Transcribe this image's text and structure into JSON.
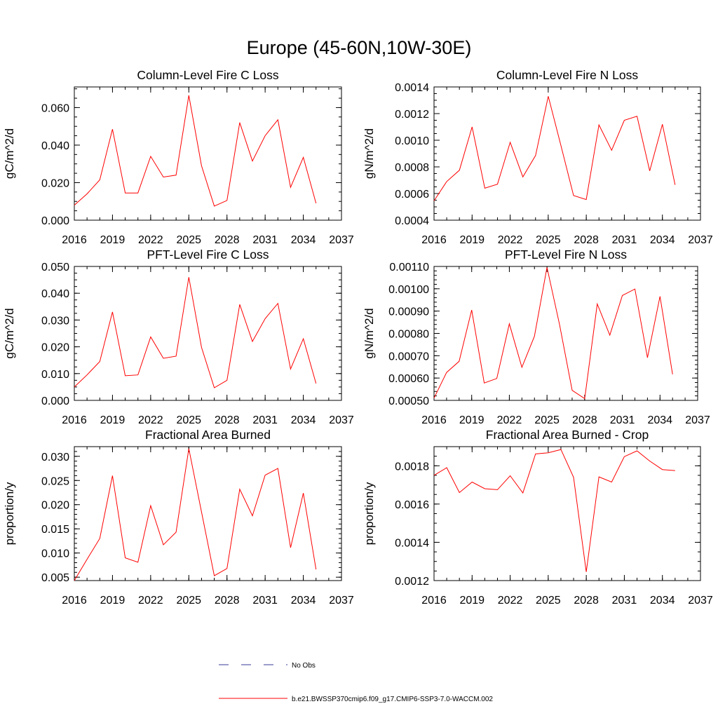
{
  "figure": {
    "title": "Europe (45-60N,10W-30E)",
    "legend": [
      {
        "label": "No Obs",
        "color": "#3a3a9a",
        "style": "dashed"
      },
      {
        "label": "b.e21.BWSSP370cmip6.f09_g17.CMIP6-SSP3-7.0-WACCM.002",
        "color": "#ff0000",
        "style": "solid"
      }
    ]
  },
  "chart_data": [
    {
      "type": "line",
      "title": "Column-Level Fire C Loss",
      "ylabel": "gC/m^2/d",
      "xlim": [
        2016,
        2037
      ],
      "xticks": [
        2016,
        2019,
        2022,
        2025,
        2028,
        2031,
        2034,
        2037
      ],
      "xtick_labels": [
        "2016",
        "2019",
        "2022",
        "2025",
        "2028",
        "2031",
        "2034",
        "2037"
      ],
      "ylim": [
        0.0,
        0.071
      ],
      "yticks": [
        0.0,
        0.02,
        0.04,
        0.06
      ],
      "ytick_labels": [
        "0.000",
        "0.020",
        "0.040",
        "0.060"
      ],
      "yminor": 0.005,
      "series": [
        {
          "color": "#ff0000",
          "x": [
            2016,
            2017,
            2018,
            2019,
            2020,
            2021,
            2022,
            2023,
            2024,
            2025,
            2026,
            2027,
            2028,
            2029,
            2030,
            2031,
            2032,
            2033,
            2034,
            2035
          ],
          "values": [
            0.008,
            0.014,
            0.0215,
            0.0485,
            0.0145,
            0.0145,
            0.034,
            0.023,
            0.024,
            0.0665,
            0.029,
            0.0075,
            0.0105,
            0.052,
            0.0315,
            0.045,
            0.0535,
            0.0175,
            0.0335,
            0.009
          ]
        }
      ]
    },
    {
      "type": "line",
      "title": "Column-Level Fire N Loss",
      "ylabel": "gN/m^2/d",
      "xlim": [
        2016,
        2037
      ],
      "xticks": [
        2016,
        2019,
        2022,
        2025,
        2028,
        2031,
        2034,
        2037
      ],
      "xtick_labels": [
        "2016",
        "2019",
        "2022",
        "2025",
        "2028",
        "2031",
        "2034",
        "2037"
      ],
      "ylim": [
        0.0004,
        0.0014
      ],
      "yticks": [
        0.0004,
        0.0006,
        0.0008,
        0.001,
        0.0012,
        0.0014
      ],
      "ytick_labels": [
        "0.0004",
        "0.0006",
        "0.0008",
        "0.0010",
        "0.0012",
        "0.0014"
      ],
      "yminor": 5e-05,
      "series": [
        {
          "color": "#ff0000",
          "x": [
            2016,
            2017,
            2018,
            2019,
            2020,
            2021,
            2022,
            2023,
            2024,
            2025,
            2026,
            2027,
            2028,
            2029,
            2030,
            2031,
            2032,
            2033,
            2034,
            2035
          ],
          "values": [
            0.000545,
            0.00069,
            0.000775,
            0.0011,
            0.00064,
            0.00067,
            0.000985,
            0.000725,
            0.000885,
            0.00133,
            0.00096,
            0.000585,
            0.000555,
            0.001115,
            0.000925,
            0.00115,
            0.00118,
            0.00077,
            0.00112,
            0.000665
          ]
        }
      ]
    },
    {
      "type": "line",
      "title": "PFT-Level Fire C Loss",
      "ylabel": "gC/m^2/d",
      "xlim": [
        2016,
        2037
      ],
      "xticks": [
        2016,
        2019,
        2022,
        2025,
        2028,
        2031,
        2034,
        2037
      ],
      "xtick_labels": [
        "2016",
        "2019",
        "2022",
        "2025",
        "2028",
        "2031",
        "2034",
        "2037"
      ],
      "ylim": [
        0.0,
        0.05
      ],
      "yticks": [
        0.0,
        0.01,
        0.02,
        0.03,
        0.04,
        0.05
      ],
      "ytick_labels": [
        "0.000",
        "0.010",
        "0.020",
        "0.030",
        "0.040",
        "0.050"
      ],
      "yminor": 0.0025,
      "series": [
        {
          "color": "#ff0000",
          "x": [
            2016,
            2017,
            2018,
            2019,
            2020,
            2021,
            2022,
            2023,
            2024,
            2025,
            2026,
            2027,
            2028,
            2029,
            2030,
            2031,
            2032,
            2033,
            2034,
            2035
          ],
          "values": [
            0.005,
            0.0095,
            0.0145,
            0.033,
            0.0092,
            0.0095,
            0.0237,
            0.0157,
            0.0165,
            0.046,
            0.0198,
            0.0047,
            0.0075,
            0.0358,
            0.022,
            0.0305,
            0.0362,
            0.0117,
            0.023,
            0.0063
          ]
        }
      ]
    },
    {
      "type": "line",
      "title": "PFT-Level Fire N Loss",
      "ylabel": "gN/m^2/d",
      "xlim": [
        2016,
        2037
      ],
      "xticks": [
        2016,
        2019,
        2022,
        2025,
        2028,
        2031,
        2034,
        2037
      ],
      "xtick_labels": [
        "2016",
        "2019",
        "2022",
        "2025",
        "2028",
        "2031",
        "2034",
        "2037"
      ],
      "ylim": [
        0.0005,
        0.0011
      ],
      "yticks": [
        0.0005,
        0.0006,
        0.0007,
        0.0008,
        0.0009,
        0.001,
        0.0011
      ],
      "ytick_labels": [
        "0.00050",
        "0.00060",
        "0.00070",
        "0.00080",
        "0.00090",
        "0.00100",
        "0.00110"
      ],
      "yminor": 2e-05,
      "series": [
        {
          "color": "#ff0000",
          "x": [
            2016,
            2017,
            2018,
            2019,
            2020,
            2021,
            2022,
            2023,
            2024,
            2025,
            2026,
            2027,
            2028,
            2029,
            2030,
            2031,
            2032,
            2033,
            2034,
            2035
          ],
          "values": [
            0.00051,
            0.000625,
            0.000675,
            0.000905,
            0.000578,
            0.000598,
            0.000843,
            0.000648,
            0.000787,
            0.001096,
            0.00084,
            0.000545,
            0.000508,
            0.000932,
            0.000792,
            0.00097,
            0.000999,
            0.000691,
            0.000966,
            0.000617
          ]
        }
      ]
    },
    {
      "type": "line",
      "title": "Fractional Area Burned",
      "ylabel": "proportion/y",
      "xlim": [
        2016,
        2037
      ],
      "xticks": [
        2016,
        2019,
        2022,
        2025,
        2028,
        2031,
        2034,
        2037
      ],
      "xtick_labels": [
        "2016",
        "2019",
        "2022",
        "2025",
        "2028",
        "2031",
        "2034",
        "2037"
      ],
      "ylim": [
        0.0043,
        0.032
      ],
      "yticks": [
        0.005,
        0.01,
        0.015,
        0.02,
        0.025,
        0.03
      ],
      "ytick_labels": [
        "0.005",
        "0.010",
        "0.015",
        "0.020",
        "0.025",
        "0.030"
      ],
      "yminor": 0.001,
      "series": [
        {
          "color": "#ff0000",
          "x": [
            2016,
            2017,
            2018,
            2019,
            2020,
            2021,
            2022,
            2023,
            2024,
            2025,
            2026,
            2027,
            2028,
            2029,
            2030,
            2031,
            2032,
            2033,
            2034,
            2035
          ],
          "values": [
            0.0043,
            0.0087,
            0.013,
            0.026,
            0.009,
            0.0081,
            0.0198,
            0.0117,
            0.0143,
            0.0316,
            0.0185,
            0.0053,
            0.0068,
            0.0232,
            0.0177,
            0.0261,
            0.0275,
            0.0111,
            0.0224,
            0.0066
          ]
        }
      ]
    },
    {
      "type": "line",
      "title": "Fractional Area Burned - Crop",
      "ylabel": "proportion/y",
      "xlim": [
        2016,
        2037
      ],
      "xticks": [
        2016,
        2019,
        2022,
        2025,
        2028,
        2031,
        2034,
        2037
      ],
      "xtick_labels": [
        "2016",
        "2019",
        "2022",
        "2025",
        "2028",
        "2031",
        "2034",
        "2037"
      ],
      "ylim": [
        0.0012,
        0.0019
      ],
      "yticks": [
        0.0012,
        0.0014,
        0.0016,
        0.0018
      ],
      "ytick_labels": [
        "0.0012",
        "0.0014",
        "0.0016",
        "0.0018"
      ],
      "yminor": 5e-05,
      "series": [
        {
          "color": "#ff0000",
          "x": [
            2016,
            2017,
            2018,
            2019,
            2020,
            2021,
            2022,
            2023,
            2024,
            2025,
            2026,
            2027,
            2028,
            2029,
            2030,
            2031,
            2032,
            2033,
            2034,
            2035
          ],
          "values": [
            0.00175,
            0.00179,
            0.00166,
            0.001715,
            0.00168,
            0.001675,
            0.001748,
            0.001658,
            0.001862,
            0.001868,
            0.001885,
            0.00174,
            0.001245,
            0.001742,
            0.001715,
            0.001848,
            0.001878,
            0.001825,
            0.00178,
            0.001775
          ]
        }
      ]
    }
  ]
}
